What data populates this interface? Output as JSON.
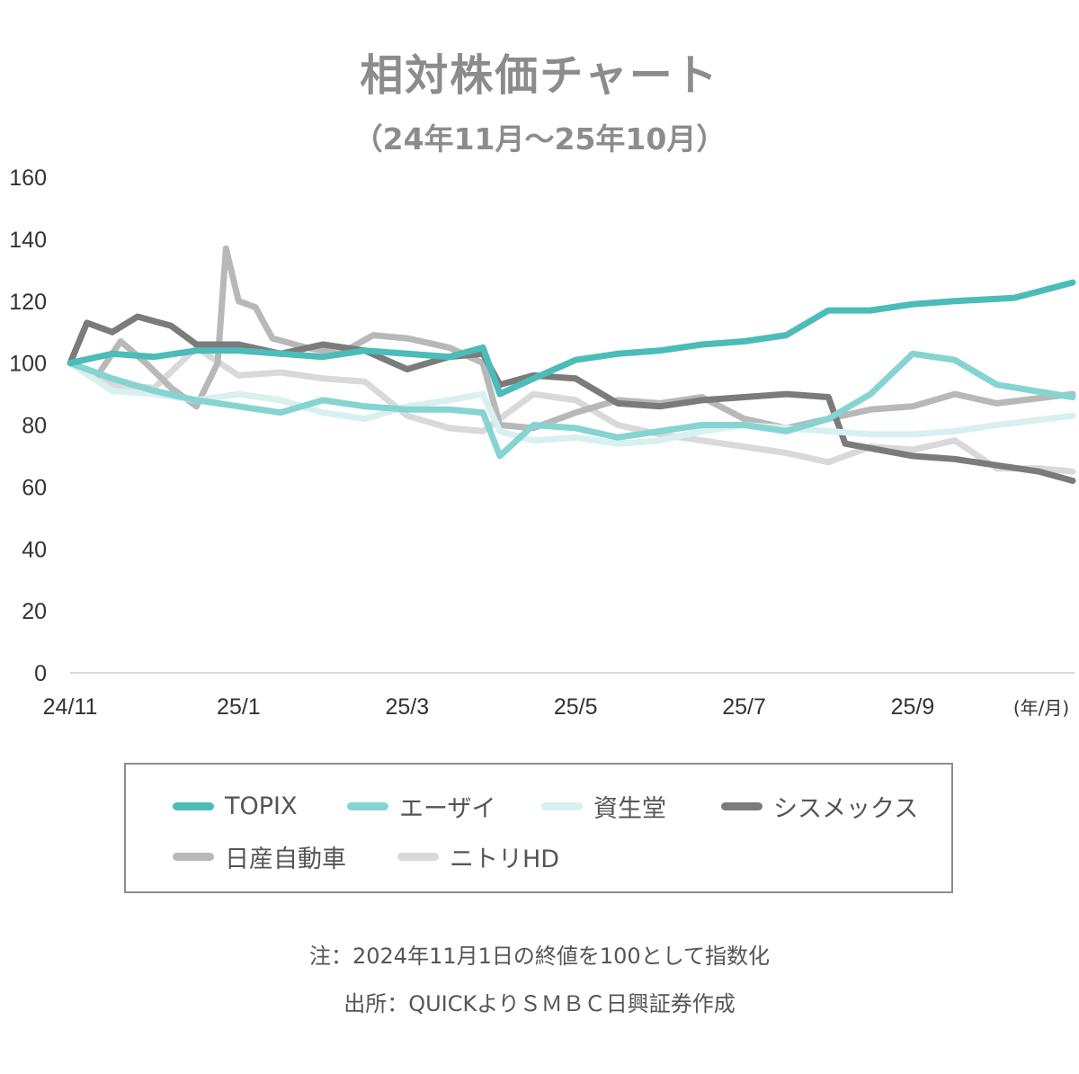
{
  "title": "相対株価チャート",
  "subtitle": "（24年11月～25年10月）",
  "unit_label": "(年/月)",
  "note": "注：2024年11月1日の終値を100として指数化",
  "source": "出所：QUICKよりＳＭＢＣ日興証券作成",
  "chart_data": {
    "type": "line",
    "title": "相対株価チャート",
    "subtitle": "（24年11月～25年10月）",
    "x_ticks": [
      "24/11",
      "25/1",
      "25/3",
      "25/5",
      "25/7",
      "25/9"
    ],
    "x_tick_months": [
      0,
      2,
      4,
      6,
      8,
      10
    ],
    "x_unit": "(年/月)",
    "ylim": [
      0,
      160
    ],
    "y_ticks": [
      0,
      20,
      40,
      60,
      80,
      100,
      120,
      140,
      160
    ],
    "grid": false,
    "legend": "bottom",
    "series": [
      {
        "name": "TOPIX",
        "color": "#4bbcb9",
        "width": 7,
        "x": [
          0,
          0.5,
          1,
          1.5,
          2,
          2.5,
          3,
          3.5,
          4,
          4.5,
          4.9,
          5.1,
          5.5,
          6,
          6.5,
          7,
          7.5,
          8,
          8.5,
          9,
          9.5,
          10,
          10.5,
          11.2,
          11.9
        ],
        "values": [
          100,
          103,
          102,
          104,
          104,
          103,
          102,
          104,
          103,
          102,
          105,
          90,
          95,
          101,
          103,
          104,
          106,
          107,
          109,
          117,
          117,
          119,
          120,
          121,
          126
        ]
      },
      {
        "name": "エーザイ",
        "color": "#85d4d1",
        "width": 7,
        "x": [
          0,
          0.5,
          1,
          1.5,
          2,
          2.5,
          3,
          3.5,
          4,
          4.5,
          4.9,
          5.1,
          5.5,
          6,
          6.5,
          7,
          7.5,
          8,
          8.5,
          9,
          9.5,
          10,
          10.5,
          11,
          11.9
        ],
        "values": [
          100,
          95,
          91,
          88,
          86,
          84,
          88,
          86,
          85,
          85,
          84,
          70,
          80,
          79,
          76,
          78,
          80,
          80,
          78,
          82,
          90,
          103,
          101,
          93,
          89
        ]
      },
      {
        "name": "資生堂",
        "color": "#d8f0ef",
        "width": 7,
        "x": [
          0,
          0.5,
          1,
          1.5,
          2,
          2.5,
          3,
          3.5,
          4,
          4.5,
          4.9,
          5.1,
          5.5,
          6,
          6.5,
          7,
          7.5,
          8,
          8.5,
          9,
          9.5,
          10,
          10.5,
          11,
          11.9
        ],
        "values": [
          100,
          91,
          90,
          88,
          90,
          88,
          84,
          82,
          86,
          88,
          90,
          78,
          75,
          76,
          74,
          75,
          78,
          80,
          79,
          78,
          77,
          77,
          78,
          80,
          83
        ]
      },
      {
        "name": "シスメックス",
        "color": "#7b7b7b",
        "width": 7,
        "x": [
          0,
          0.2,
          0.5,
          0.8,
          1.2,
          1.5,
          2,
          2.5,
          3,
          3.5,
          4,
          4.5,
          4.9,
          5.1,
          5.5,
          6,
          6.5,
          7,
          7.5,
          8,
          8.5,
          9,
          9.2,
          9.6,
          10,
          10.5,
          11,
          11.5,
          11.9
        ],
        "values": [
          100,
          113,
          110,
          115,
          112,
          106,
          106,
          103,
          106,
          104,
          98,
          102,
          103,
          93,
          96,
          95,
          87,
          86,
          88,
          89,
          90,
          89,
          74,
          72,
          70,
          69,
          67,
          65,
          62
        ]
      },
      {
        "name": "日産自動車",
        "color": "#b8b8b8",
        "width": 7,
        "x": [
          0,
          0.3,
          0.6,
          0.9,
          1.2,
          1.5,
          1.75,
          1.85,
          2.0,
          2.2,
          2.4,
          2.8,
          3.2,
          3.6,
          4.0,
          4.5,
          4.9,
          5.1,
          5.5,
          6,
          6.5,
          7,
          7.5,
          8,
          8.5,
          9,
          9.5,
          10,
          10.5,
          11,
          11.9
        ],
        "values": [
          100,
          95,
          107,
          100,
          92,
          86,
          100,
          137,
          120,
          118,
          108,
          105,
          103,
          109,
          108,
          105,
          100,
          80,
          79,
          84,
          88,
          87,
          89,
          82,
          79,
          82,
          85,
          86,
          90,
          87,
          90
        ]
      },
      {
        "name": "ニトリHD",
        "color": "#d9d9d9",
        "width": 7,
        "x": [
          0,
          0.5,
          1,
          1.5,
          2,
          2.5,
          3,
          3.5,
          4,
          4.5,
          4.9,
          5.1,
          5.5,
          6,
          6.5,
          7,
          7.5,
          8,
          8.5,
          9,
          9.5,
          10,
          10.5,
          11,
          11.5,
          11.9
        ],
        "values": [
          100,
          93,
          92,
          105,
          96,
          97,
          95,
          94,
          83,
          79,
          78,
          82,
          90,
          88,
          80,
          77,
          75,
          73,
          71,
          68,
          73,
          72,
          75,
          66,
          66,
          65
        ]
      }
    ]
  }
}
